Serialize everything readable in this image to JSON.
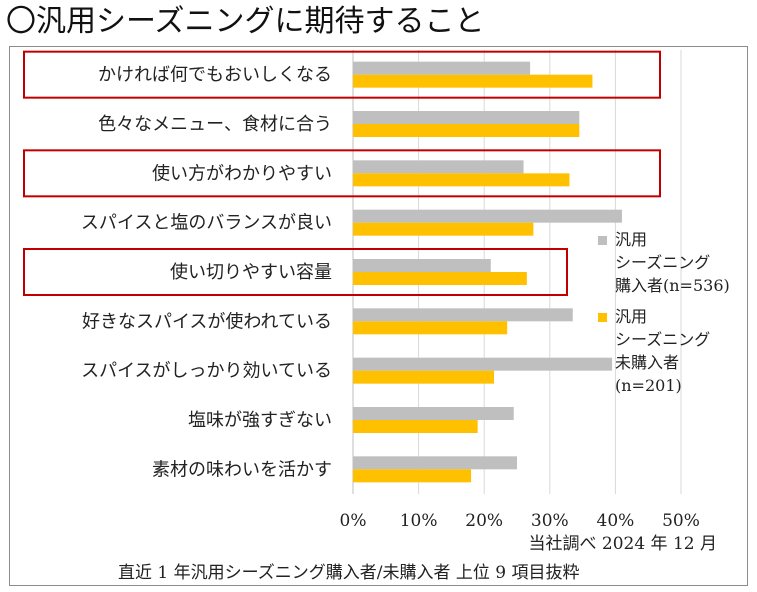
{
  "title": "〇汎用シーズニングに期待すること",
  "source": "当社調べ 2024 年 12 月",
  "subtitle": "直近 1 年汎用シーズニング購入者/未購入者 上位 9 項目抜粋",
  "colors": {
    "purchaser": "#bfbfbf",
    "non_purchaser": "#ffc000",
    "highlight": "#c00000",
    "grid": "#d9d9d9"
  },
  "chart_data": {
    "type": "bar",
    "orientation": "horizontal",
    "categories": [
      "かければ何でもおいしくなる",
      "色々なメニュー、食材に合う",
      "使い方がわかりやすい",
      "スパイスと塩のバランスが良い",
      "使い切りやすい容量",
      "好きなスパイスが使われている",
      "スパイスがしっかり効いている",
      "塩味が強すぎない",
      "素材の味わいを活かす"
    ],
    "series": [
      {
        "name": "汎用\nシーズニング\n購入者(n=536)",
        "values": [
          27,
          34.5,
          26,
          41,
          21,
          33.5,
          39.5,
          24.5,
          25
        ]
      },
      {
        "name": "汎用\nシーズニング\n未購入者\n(n=201)",
        "values": [
          36.5,
          34.5,
          33,
          27.5,
          26.5,
          23.5,
          21.5,
          19,
          18
        ]
      }
    ],
    "highlighted_categories": [
      "かければ何でもおいしくなる",
      "使い方がわかりやすい",
      "使い切りやすい容量"
    ],
    "x_ticks": [
      "0%",
      "10%",
      "20%",
      "30%",
      "40%",
      "50%"
    ],
    "xlim": [
      0,
      50
    ],
    "grid": true,
    "legend_position": "right"
  }
}
